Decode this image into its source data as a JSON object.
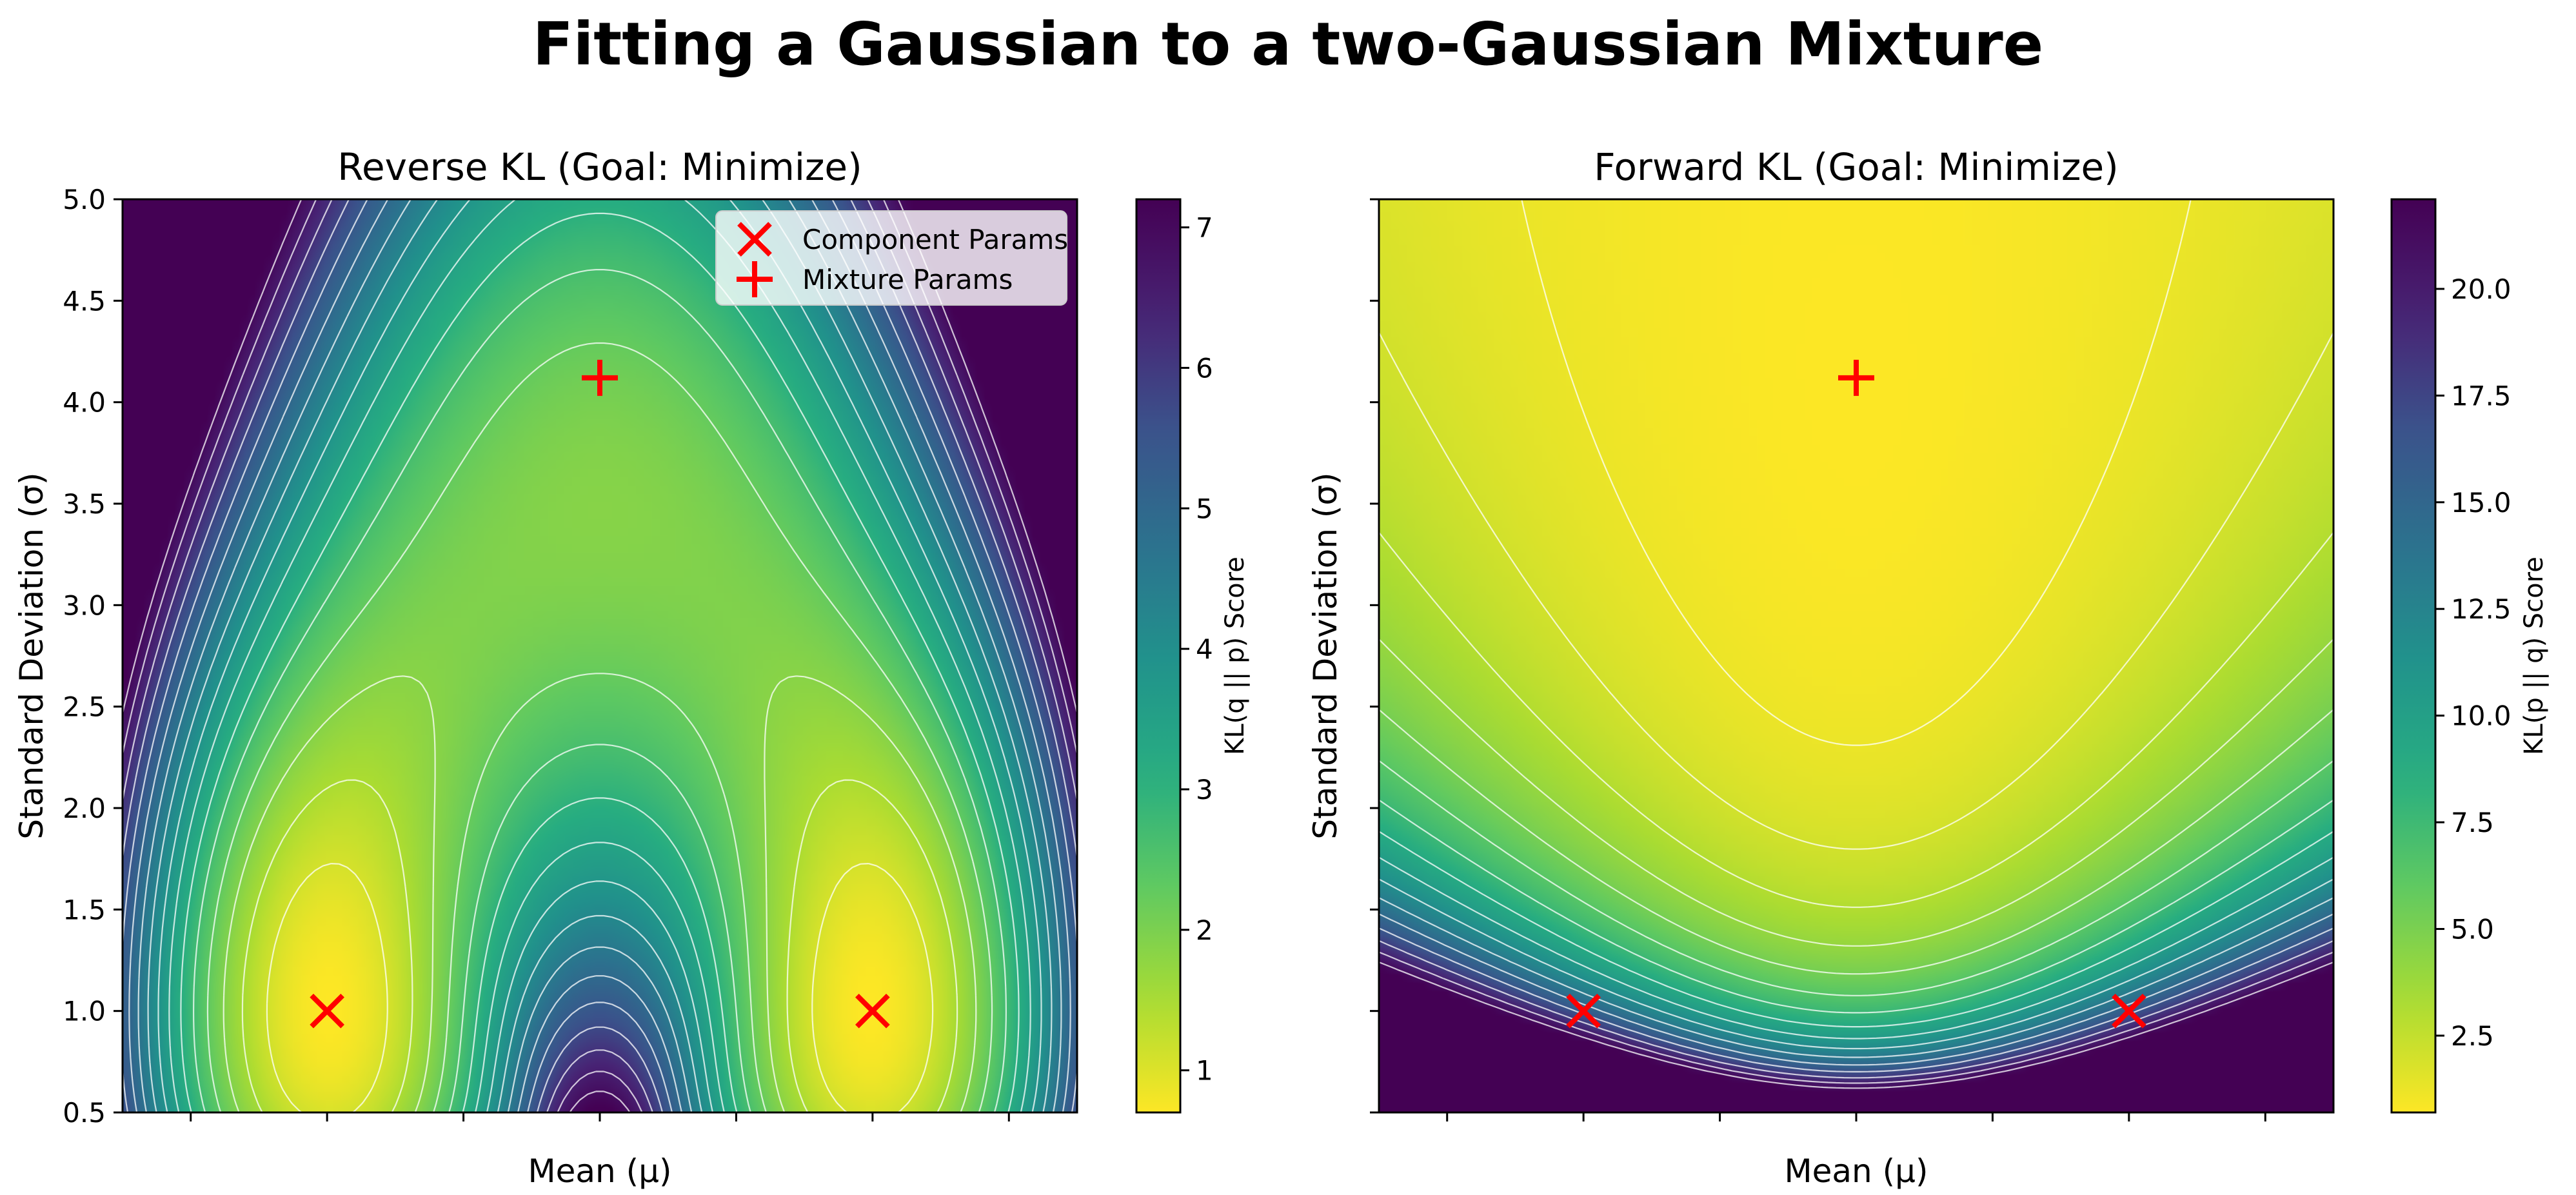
{
  "figure": {
    "title": "Fitting a Gaussian to a two-Gaussian Mixture"
  },
  "chart_data": [
    {
      "type": "heatmap",
      "title": "Reverse KL (Goal: Minimize)",
      "xlabel": "Mean (μ)",
      "ylabel": "Standard Deviation (σ)",
      "xlim": [
        -7,
        7
      ],
      "ylim": [
        0.5,
        5.0
      ],
      "x_tick_values": [
        -6,
        -4,
        -2,
        0,
        2,
        4,
        6
      ],
      "x_tick_labels": [
        "",
        "",
        "",
        "",
        "",
        "",
        ""
      ],
      "y_ticks": [
        0.5,
        1.0,
        1.5,
        2.0,
        2.5,
        3.0,
        3.5,
        4.0,
        4.5,
        5.0
      ],
      "y_tick_labels": [
        "0.5",
        "1.0",
        "1.5",
        "2.0",
        "2.5",
        "3.0",
        "3.5",
        "4.0",
        "4.5",
        "5.0"
      ],
      "colormap": "viridis_r",
      "colorbar": {
        "label": "KL(q || p) Score",
        "range": [
          0.7,
          7.2
        ],
        "ticks": [
          1,
          2,
          3,
          4,
          5,
          6,
          7
        ],
        "tick_labels": [
          "1",
          "2",
          "3",
          "4",
          "5",
          "6",
          "7"
        ]
      },
      "contour_color": "#ffffff",
      "markers": [
        {
          "name": "Component Params",
          "symbol": "x",
          "color": "#ff0000",
          "points": [
            [
              -4,
              1.0
            ],
            [
              4,
              1.0
            ]
          ]
        },
        {
          "name": "Mixture Params",
          "symbol": "+",
          "color": "#ff0000",
          "points": [
            [
              0,
              4.12
            ]
          ]
        }
      ],
      "legend": {
        "placement": "top-right",
        "entries": [
          {
            "label": "Component Params",
            "symbol": "x"
          },
          {
            "label": "Mixture Params",
            "symbol": "+"
          }
        ]
      }
    },
    {
      "type": "heatmap",
      "title": "Forward KL (Goal: Minimize)",
      "xlabel": "Mean (μ)",
      "ylabel": "Standard Deviation (σ)",
      "xlim": [
        -7,
        7
      ],
      "ylim": [
        0.5,
        5.0
      ],
      "x_tick_values": [
        -6,
        -4,
        -2,
        0,
        2,
        4,
        6
      ],
      "x_tick_labels": [
        "",
        "",
        "",
        "",
        "",
        "",
        ""
      ],
      "y_ticks": [
        0.5,
        1.0,
        1.5,
        2.0,
        2.5,
        3.0,
        3.5,
        4.0,
        4.5,
        5.0
      ],
      "y_tick_labels": [
        "",
        "",
        "",
        "",
        "",
        "",
        "",
        "",
        "",
        ""
      ],
      "colormap": "viridis_r",
      "colorbar": {
        "label": "KL(p || q) Score",
        "range": [
          0.7,
          22.1
        ],
        "ticks": [
          2.5,
          5.0,
          7.5,
          10.0,
          12.5,
          15.0,
          17.5,
          20.0
        ],
        "tick_labels": [
          "2.5",
          "5.0",
          "7.5",
          "10.0",
          "12.5",
          "15.0",
          "17.5",
          "20.0"
        ]
      },
      "contour_color": "#ffffff",
      "markers": [
        {
          "name": "Component Params",
          "symbol": "x",
          "color": "#ff0000",
          "points": [
            [
              -4,
              1.0
            ],
            [
              4,
              1.0
            ]
          ]
        },
        {
          "name": "Mixture Params",
          "symbol": "+",
          "color": "#ff0000",
          "points": [
            [
              0,
              4.12
            ]
          ]
        }
      ]
    }
  ]
}
